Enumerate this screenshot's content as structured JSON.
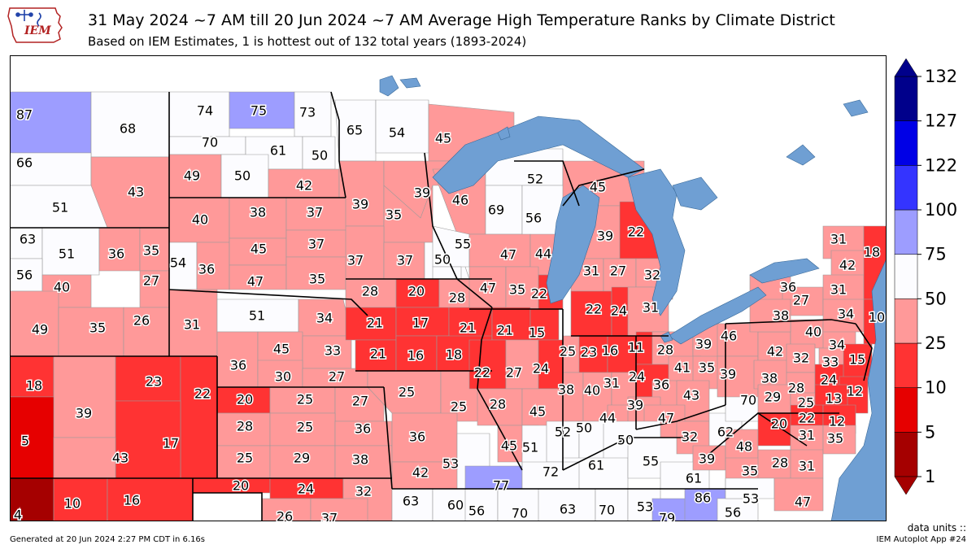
{
  "header": {
    "title": "31 May 2024 ~7 AM till 20 Jun 2024 ~7 AM Average High Temperature Ranks by Climate District",
    "subtitle": "Based on IEM Estimates, 1 is hottest out of 132 total years (1893-2024)"
  },
  "logo": {
    "text": "IEM",
    "color": "#b22222"
  },
  "footer": {
    "generated": "Generated at 20 Jun 2024 2:27 PM CDT in 6.16s",
    "units": "data units ::",
    "app": "IEM Autoplot App #24"
  },
  "colors": {
    "water": "#6f9fd3",
    "land_outside": "#ffffff",
    "border": "#000000"
  },
  "colorbar": {
    "bins": [
      {
        "low": 1,
        "high": 5,
        "color": "#a50000"
      },
      {
        "low": 5,
        "high": 10,
        "color": "#e60000"
      },
      {
        "low": 10,
        "high": 25,
        "color": "#ff3333"
      },
      {
        "low": 25,
        "high": 50,
        "color": "#ff9999"
      },
      {
        "low": 50,
        "high": 75,
        "color": "#fcfcff"
      },
      {
        "low": 75,
        "high": 100,
        "color": "#9d9dff"
      },
      {
        "low": 100,
        "high": 122,
        "color": "#3434ff"
      },
      {
        "low": 122,
        "high": 127,
        "color": "#0000e6"
      },
      {
        "low": 127,
        "high": 132,
        "color": "#00008b"
      }
    ],
    "tick_labels": [
      "1",
      "5",
      "10",
      "25",
      "50",
      "75",
      "100",
      "122",
      "127",
      "132"
    ]
  },
  "districts": [
    {
      "id": "mt1",
      "rank": 87
    },
    {
      "id": "mt2",
      "rank": 68
    },
    {
      "id": "mt3",
      "rank": 66
    },
    {
      "id": "mt4",
      "rank": 51
    },
    {
      "id": "mt5",
      "rank": 43
    },
    {
      "id": "nd1",
      "rank": 74
    },
    {
      "id": "nd2",
      "rank": 75
    },
    {
      "id": "nd3",
      "rank": 73
    },
    {
      "id": "nd4",
      "rank": 70
    },
    {
      "id": "nd5",
      "rank": 61
    },
    {
      "id": "nd6",
      "rank": 50
    },
    {
      "id": "nd7",
      "rank": 49
    },
    {
      "id": "nd8",
      "rank": 50
    },
    {
      "id": "nd9",
      "rank": 42
    },
    {
      "id": "mn1",
      "rank": 65
    },
    {
      "id": "mn2",
      "rank": 54
    },
    {
      "id": "mn3",
      "rank": 45
    },
    {
      "id": "mn4",
      "rank": 39
    },
    {
      "id": "mn5",
      "rank": 35
    },
    {
      "id": "mn6",
      "rank": 39
    },
    {
      "id": "mn7",
      "rank": 37
    },
    {
      "id": "mn8",
      "rank": 37
    },
    {
      "id": "mn9",
      "rank": 50
    },
    {
      "id": "sd1",
      "rank": 40
    },
    {
      "id": "sd2",
      "rank": 38
    },
    {
      "id": "sd3",
      "rank": 37
    },
    {
      "id": "sd4",
      "rank": 54
    },
    {
      "id": "sd5",
      "rank": 36
    },
    {
      "id": "sd6",
      "rank": 45
    },
    {
      "id": "sd7",
      "rank": 37
    },
    {
      "id": "sd8",
      "rank": 47
    },
    {
      "id": "sd9",
      "rank": 35
    },
    {
      "id": "wy1",
      "rank": 63
    },
    {
      "id": "wy2",
      "rank": 51
    },
    {
      "id": "wy3",
      "rank": 36
    },
    {
      "id": "wy4",
      "rank": 35
    },
    {
      "id": "wy5",
      "rank": 56
    },
    {
      "id": "wy6",
      "rank": 40
    },
    {
      "id": "wy7",
      "rank": 27
    },
    {
      "id": "wy8",
      "rank": 49
    },
    {
      "id": "wy9",
      "rank": 35
    },
    {
      "id": "wy10",
      "rank": 26
    },
    {
      "id": "ne1",
      "rank": 31
    },
    {
      "id": "ne2",
      "rank": 51
    },
    {
      "id": "ne3",
      "rank": 34
    },
    {
      "id": "ne4",
      "rank": 36
    },
    {
      "id": "ne5",
      "rank": 45
    },
    {
      "id": "ne6",
      "rank": 33
    },
    {
      "id": "ne7",
      "rank": 30
    },
    {
      "id": "ne8",
      "rank": 27
    },
    {
      "id": "co1",
      "rank": 18
    },
    {
      "id": "co2",
      "rank": 39
    },
    {
      "id": "co3",
      "rank": 23
    },
    {
      "id": "co4",
      "rank": 22
    },
    {
      "id": "co5",
      "rank": 5
    },
    {
      "id": "co6",
      "rank": 17
    },
    {
      "id": "co7",
      "rank": 43
    },
    {
      "id": "ks1",
      "rank": 20
    },
    {
      "id": "ks2",
      "rank": 25
    },
    {
      "id": "ks3",
      "rank": 27
    },
    {
      "id": "ks4",
      "rank": 28
    },
    {
      "id": "ks5",
      "rank": 25
    },
    {
      "id": "ks6",
      "rank": 36
    },
    {
      "id": "ks7",
      "rank": 25
    },
    {
      "id": "ks8",
      "rank": 29
    },
    {
      "id": "ks9",
      "rank": 38
    },
    {
      "id": "ok1",
      "rank": 4
    },
    {
      "id": "ok2",
      "rank": 10
    },
    {
      "id": "ok3",
      "rank": 16
    },
    {
      "id": "ok4",
      "rank": 20
    },
    {
      "id": "ok5",
      "rank": 24
    },
    {
      "id": "ok6",
      "rank": 32
    },
    {
      "id": "ok7",
      "rank": 26
    },
    {
      "id": "ok8",
      "rank": 37
    },
    {
      "id": "ia1",
      "rank": 28
    },
    {
      "id": "ia2",
      "rank": 20
    },
    {
      "id": "ia3",
      "rank": 28
    },
    {
      "id": "ia4",
      "rank": 21
    },
    {
      "id": "ia5",
      "rank": 17
    },
    {
      "id": "ia6",
      "rank": 21
    },
    {
      "id": "ia7",
      "rank": 21
    },
    {
      "id": "ia8",
      "rank": 16
    },
    {
      "id": "ia9",
      "rank": 18
    },
    {
      "id": "mo1",
      "rank": 25
    },
    {
      "id": "mo2",
      "rank": 25
    },
    {
      "id": "mo3",
      "rank": 36
    },
    {
      "id": "mo4",
      "rank": 42
    },
    {
      "id": "mo5",
      "rank": 53
    },
    {
      "id": "mo6",
      "rank": 77
    },
    {
      "id": "wi1",
      "rank": 46
    },
    {
      "id": "wi2",
      "rank": 52
    },
    {
      "id": "wi3",
      "rank": 69
    },
    {
      "id": "wi4",
      "rank": 56
    },
    {
      "id": "wi5",
      "rank": 55
    },
    {
      "id": "wi6",
      "rank": 47
    },
    {
      "id": "wi7",
      "rank": 44
    },
    {
      "id": "wi8",
      "rank": 50
    },
    {
      "id": "wi9",
      "rank": 47
    },
    {
      "id": "wi10",
      "rank": 35
    },
    {
      "id": "wi11",
      "rank": 22
    },
    {
      "id": "il1",
      "rank": 21
    },
    {
      "id": "il2",
      "rank": 15
    },
    {
      "id": "il3",
      "rank": 22
    },
    {
      "id": "il4",
      "rank": 27
    },
    {
      "id": "il5",
      "rank": 24
    },
    {
      "id": "il6",
      "rank": 28
    },
    {
      "id": "il7",
      "rank": 45
    },
    {
      "id": "il8",
      "rank": 45
    },
    {
      "id": "il9",
      "rank": 51
    },
    {
      "id": "mi1",
      "rank": 45
    },
    {
      "id": "mi2",
      "rank": 39
    },
    {
      "id": "mi3",
      "rank": 22
    },
    {
      "id": "mi4",
      "rank": 31
    },
    {
      "id": "mi5",
      "rank": 27
    },
    {
      "id": "mi6",
      "rank": 32
    },
    {
      "id": "mi7",
      "rank": 22
    },
    {
      "id": "mi8",
      "rank": 24
    },
    {
      "id": "mi9",
      "rank": 31
    },
    {
      "id": "in1",
      "rank": 25
    },
    {
      "id": "in2",
      "rank": 23
    },
    {
      "id": "in3",
      "rank": 16
    },
    {
      "id": "in4",
      "rank": 38
    },
    {
      "id": "in5",
      "rank": 40
    },
    {
      "id": "in6",
      "rank": 31
    },
    {
      "id": "in7",
      "rank": 52
    },
    {
      "id": "in8",
      "rank": 50
    },
    {
      "id": "in9",
      "rank": 44
    },
    {
      "id": "oh1",
      "rank": 11
    },
    {
      "id": "oh2",
      "rank": 28
    },
    {
      "id": "oh3",
      "rank": 39
    },
    {
      "id": "oh4",
      "rank": 24
    },
    {
      "id": "oh5",
      "rank": 41
    },
    {
      "id": "oh6",
      "rank": 35
    },
    {
      "id": "oh7",
      "rank": 36
    },
    {
      "id": "oh8",
      "rank": 43
    },
    {
      "id": "oh9",
      "rank": 39
    },
    {
      "id": "oh10",
      "rank": 47
    },
    {
      "id": "ky1",
      "rank": 50
    },
    {
      "id": "ky2",
      "rank": 61
    },
    {
      "id": "ky3",
      "rank": 72
    },
    {
      "id": "ky4",
      "rank": 55
    },
    {
      "id": "ky5",
      "rank": 61
    },
    {
      "id": "tn1",
      "rank": 63
    },
    {
      "id": "tn2",
      "rank": 60
    },
    {
      "id": "tn3",
      "rank": 56
    },
    {
      "id": "tn4",
      "rank": 70
    },
    {
      "id": "tn5",
      "rank": 63
    },
    {
      "id": "tn6",
      "rank": 70
    },
    {
      "id": "tn7",
      "rank": 53
    },
    {
      "id": "tn8",
      "rank": 79
    },
    {
      "id": "tn9",
      "rank": 86
    },
    {
      "id": "tn10",
      "rank": 56
    },
    {
      "id": "wv1",
      "rank": 32
    },
    {
      "id": "wv2",
      "rank": 62
    },
    {
      "id": "wv3",
      "rank": 39
    },
    {
      "id": "wv4",
      "rank": 48
    },
    {
      "id": "wv5",
      "rank": 70
    },
    {
      "id": "va1",
      "rank": 20
    },
    {
      "id": "va2",
      "rank": 35
    },
    {
      "id": "va3",
      "rank": 28
    },
    {
      "id": "va4",
      "rank": 31
    },
    {
      "id": "va5",
      "rank": 53
    },
    {
      "id": "va6",
      "rank": 47
    },
    {
      "id": "pa1",
      "rank": 46
    },
    {
      "id": "pa2",
      "rank": 39
    },
    {
      "id": "pa3",
      "rank": 42
    },
    {
      "id": "pa4",
      "rank": 38
    },
    {
      "id": "pa5",
      "rank": 40
    },
    {
      "id": "pa6",
      "rank": 32
    },
    {
      "id": "pa7",
      "rank": 28
    },
    {
      "id": "pa8",
      "rank": 34
    },
    {
      "id": "pa9",
      "rank": 33
    },
    {
      "id": "pa10",
      "rank": 24
    },
    {
      "id": "pa11",
      "rank": 29
    },
    {
      "id": "ny1",
      "rank": 36
    },
    {
      "id": "ny2",
      "rank": 27
    },
    {
      "id": "ny3",
      "rank": 38
    },
    {
      "id": "ny4",
      "rank": 31
    },
    {
      "id": "ny5",
      "rank": 42
    },
    {
      "id": "ny6",
      "rank": 31
    },
    {
      "id": "ny7",
      "rank": 34
    },
    {
      "id": "ny8",
      "rank": 18
    },
    {
      "id": "ny9",
      "rank": 10
    },
    {
      "id": "nj1",
      "rank": 15
    },
    {
      "id": "nj2",
      "rank": 12
    },
    {
      "id": "md1",
      "rank": 25
    },
    {
      "id": "md2",
      "rank": 13
    },
    {
      "id": "md3",
      "rank": 22
    },
    {
      "id": "md4",
      "rank": 12
    },
    {
      "id": "md5",
      "rank": 31
    },
    {
      "id": "md6",
      "rank": 35
    }
  ]
}
